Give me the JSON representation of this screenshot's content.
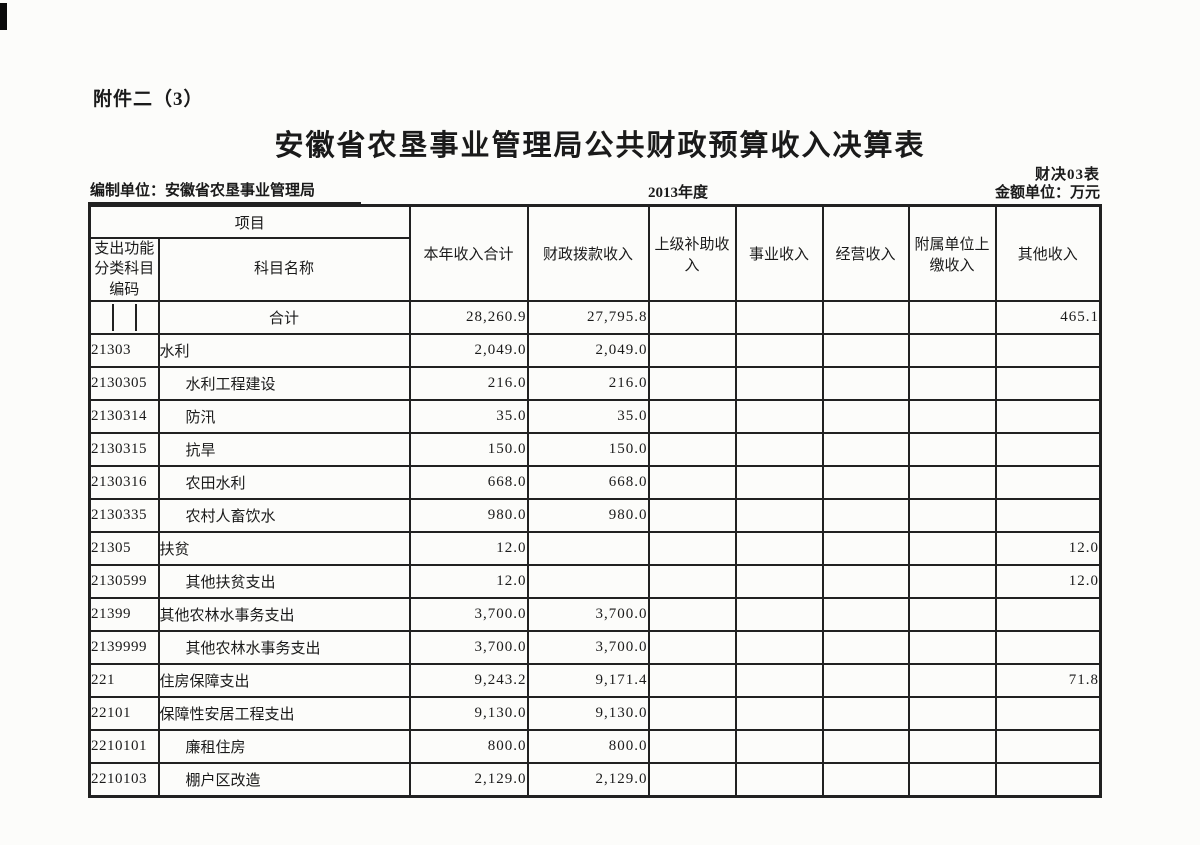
{
  "page": {
    "attachment_label": "附件二（3）",
    "title": "安徽省农垦事业管理局公共财政预算收入决算表",
    "form_code": "财决03表",
    "prepared_by_label": "编制单位：",
    "prepared_by": "安徽省农垦事业管理局",
    "fiscal_year": "2013年度",
    "unit_label": "金额单位：万元"
  },
  "colors": {
    "ink": "#1a1a1a",
    "line": "#212121",
    "paper": "#fcfcfa"
  },
  "table": {
    "header": {
      "project": "项目",
      "code": "支出功能分类科目编码",
      "subject_name": "科目名称",
      "columns": [
        "本年收入合计",
        "财政拨款收入",
        "上级补助收入",
        "事业收入",
        "经营收入",
        "附属单位上缴收入",
        "其他收入"
      ]
    },
    "rows": [
      {
        "total": true,
        "code": "",
        "name": "合计",
        "indent": 0,
        "values": [
          "28,260.9",
          "27,795.8",
          "",
          "",
          "",
          "",
          "465.1"
        ]
      },
      {
        "code": "21303",
        "name": "水利",
        "indent": 0,
        "values": [
          "2,049.0",
          "2,049.0",
          "",
          "",
          "",
          "",
          ""
        ]
      },
      {
        "code": "2130305",
        "name": "水利工程建设",
        "indent": 1,
        "values": [
          "216.0",
          "216.0",
          "",
          "",
          "",
          "",
          ""
        ]
      },
      {
        "code": "2130314",
        "name": "防汛",
        "indent": 1,
        "values": [
          "35.0",
          "35.0",
          "",
          "",
          "",
          "",
          ""
        ]
      },
      {
        "code": "2130315",
        "name": "抗旱",
        "indent": 1,
        "values": [
          "150.0",
          "150.0",
          "",
          "",
          "",
          "",
          ""
        ]
      },
      {
        "code": "2130316",
        "name": "农田水利",
        "indent": 1,
        "values": [
          "668.0",
          "668.0",
          "",
          "",
          "",
          "",
          ""
        ]
      },
      {
        "code": "2130335",
        "name": "农村人畜饮水",
        "indent": 1,
        "values": [
          "980.0",
          "980.0",
          "",
          "",
          "",
          "",
          ""
        ]
      },
      {
        "code": "21305",
        "name": "扶贫",
        "indent": 0,
        "values": [
          "12.0",
          "",
          "",
          "",
          "",
          "",
          "12.0"
        ]
      },
      {
        "code": "2130599",
        "name": "其他扶贫支出",
        "indent": 1,
        "values": [
          "12.0",
          "",
          "",
          "",
          "",
          "",
          "12.0"
        ]
      },
      {
        "code": "21399",
        "name": "其他农林水事务支出",
        "indent": 0,
        "values": [
          "3,700.0",
          "3,700.0",
          "",
          "",
          "",
          "",
          ""
        ]
      },
      {
        "code": "2139999",
        "name": "其他农林水事务支出",
        "indent": 1,
        "values": [
          "3,700.0",
          "3,700.0",
          "",
          "",
          "",
          "",
          ""
        ]
      },
      {
        "code": "221",
        "name": "住房保障支出",
        "indent": 0,
        "values": [
          "9,243.2",
          "9,171.4",
          "",
          "",
          "",
          "",
          "71.8"
        ]
      },
      {
        "code": "22101",
        "name": "保障性安居工程支出",
        "indent": 0,
        "values": [
          "9,130.0",
          "9,130.0",
          "",
          "",
          "",
          "",
          ""
        ]
      },
      {
        "code": "2210101",
        "name": "廉租住房",
        "indent": 1,
        "values": [
          "800.0",
          "800.0",
          "",
          "",
          "",
          "",
          ""
        ]
      },
      {
        "code": "2210103",
        "name": "棚户区改造",
        "indent": 1,
        "values": [
          "2,129.0",
          "2,129.0",
          "",
          "",
          "",
          "",
          ""
        ]
      }
    ]
  }
}
